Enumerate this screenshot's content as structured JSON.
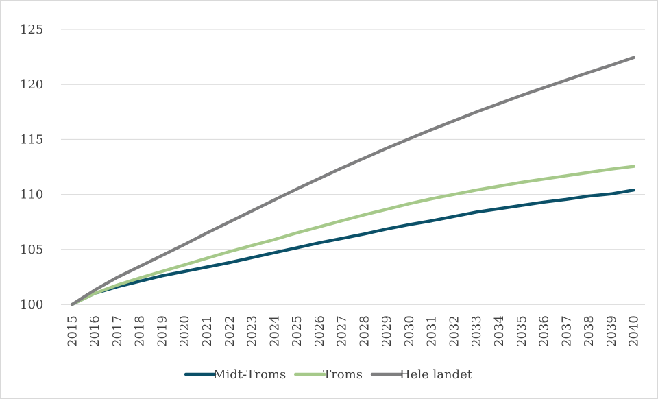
{
  "chart_data": {
    "type": "line",
    "title": "",
    "xlabel": "",
    "ylabel": "",
    "x": [
      "2015",
      "2016",
      "2017",
      "2018",
      "2019",
      "2020",
      "2021",
      "2022",
      "2023",
      "2024",
      "2025",
      "2026",
      "2027",
      "2028",
      "2029",
      "2030",
      "2031",
      "2032",
      "2033",
      "2034",
      "2035",
      "2036",
      "2037",
      "2038",
      "2039",
      "2040"
    ],
    "ylim": [
      100,
      125
    ],
    "yticks": [
      "100",
      "105",
      "110",
      "115",
      "120",
      "125"
    ],
    "grid": true,
    "legend_position": "bottom",
    "series": [
      {
        "name": "Midt-Troms",
        "color": "#0b5068",
        "values": [
          100,
          101.0,
          101.6,
          102.1,
          102.6,
          103.0,
          103.4,
          103.8,
          104.25,
          104.7,
          105.15,
          105.6,
          106.0,
          106.4,
          106.85,
          107.25,
          107.6,
          108.0,
          108.4,
          108.7,
          109.0,
          109.3,
          109.55,
          109.85,
          110.05,
          110.4
        ]
      },
      {
        "name": "Troms",
        "color": "#a6c98a",
        "values": [
          100,
          101.0,
          101.75,
          102.4,
          103.0,
          103.6,
          104.2,
          104.8,
          105.35,
          105.9,
          106.5,
          107.05,
          107.6,
          108.15,
          108.65,
          109.15,
          109.6,
          110.0,
          110.4,
          110.75,
          111.1,
          111.4,
          111.7,
          112.0,
          112.3,
          112.55
        ]
      },
      {
        "name": "Hele landet",
        "color": "#7f7f80",
        "values": [
          100,
          101.3,
          102.45,
          103.45,
          104.45,
          105.45,
          106.5,
          107.5,
          108.5,
          109.5,
          110.5,
          111.45,
          112.4,
          113.3,
          114.2,
          115.05,
          115.9,
          116.7,
          117.5,
          118.25,
          119.0,
          119.7,
          120.4,
          121.1,
          121.75,
          122.45
        ]
      }
    ]
  }
}
